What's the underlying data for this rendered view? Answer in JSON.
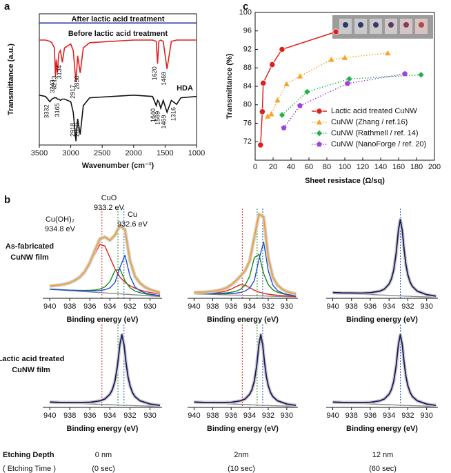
{
  "chart_data": [
    {
      "type": "line",
      "panel_label": "a",
      "x_label": "Wavenumber (cm⁻¹)",
      "y_label": "Transmittance (a.u.)",
      "x": [
        3500,
        3400,
        3332,
        3300,
        3260,
        3243,
        3230,
        3213,
        3190,
        3165,
        3134,
        3100,
        3000,
        2960,
        2918,
        2890,
        2850,
        2800,
        2700,
        2000,
        1700,
        1640,
        1620,
        1600,
        1569,
        1530,
        1469,
        1400,
        1316,
        1250,
        1000
      ],
      "xlim": [
        3500,
        1000
      ],
      "xticks": [
        3500,
        3000,
        2500,
        2000,
        1500,
        1000
      ],
      "ylim": [
        0,
        100
      ],
      "series": [
        {
          "name": "After lactic acid treatment",
          "color": "#1c2f9e",
          "values": [
            93,
            93,
            93,
            93,
            93,
            93,
            93,
            93,
            93,
            93,
            93,
            93,
            93,
            93,
            93,
            93,
            93,
            93,
            93,
            93,
            93,
            93,
            93,
            93,
            93,
            93,
            93,
            93,
            93,
            93,
            93
          ],
          "peak_labels": []
        },
        {
          "name": "Before lactic acid treatment",
          "color": "#e0201e",
          "values": [
            80,
            80,
            79,
            78,
            74,
            52,
            65,
            55,
            70,
            72,
            63,
            74,
            77,
            72,
            48,
            68,
            55,
            74,
            78,
            80,
            80,
            79,
            62,
            79,
            80,
            79,
            58,
            79,
            80,
            80,
            80
          ],
          "peak_labels": [
            3243,
            3213,
            3134,
            2917,
            2850,
            1620,
            1469
          ]
        },
        {
          "name": "HDA",
          "color": "#111111",
          "values": [
            38,
            37,
            33,
            35,
            36,
            36,
            36,
            35,
            35,
            34,
            35,
            35,
            33,
            25,
            3,
            20,
            8,
            30,
            36,
            38,
            37,
            30,
            34,
            33,
            28,
            34,
            25,
            34,
            31,
            36,
            37
          ],
          "peak_labels": [
            3332,
            3165,
            2918,
            2850,
            1640,
            1569,
            1469,
            1316
          ]
        }
      ]
    },
    {
      "type": "scatter",
      "panel_label": "c",
      "x_label": "Sheet resistace (Ω/sq)",
      "y_label": "Transmittance (%)",
      "xlim": [
        0,
        200
      ],
      "xticks": [
        0,
        20,
        40,
        60,
        80,
        100,
        120,
        140,
        160,
        180,
        200
      ],
      "ylim": [
        68,
        100
      ],
      "yticks": [
        72,
        76,
        80,
        84,
        88,
        92,
        96,
        100
      ],
      "legend": "lower right",
      "series": [
        {
          "name": "Lactic acid treated CuNW",
          "color": "#e0201e",
          "marker": "circle",
          "linestyle": "solid",
          "x": [
            6,
            8,
            9,
            19,
            30,
            90
          ],
          "values": [
            71.3,
            78.5,
            84.7,
            88.7,
            92,
            95.8
          ]
        },
        {
          "name": "CuNW (Zhang / ref.16)",
          "color": "#f5a623",
          "marker": "triangle",
          "linestyle": "dotted",
          "x": [
            14,
            18,
            25,
            35,
            50,
            85,
            100,
            148
          ],
          "values": [
            77.5,
            78,
            81,
            84.5,
            86.2,
            89.8,
            90.2,
            91.2
          ]
        },
        {
          "name": "CuNW (Rathmell / ref. 14)",
          "color": "#22b14c",
          "marker": "diamond",
          "linestyle": "dotted",
          "x": [
            30,
            58,
            105,
            185
          ],
          "values": [
            77.8,
            82.8,
            85.6,
            86.5
          ]
        },
        {
          "name": "CuNW (NanoForge / ref. 20)",
          "color": "#a040e0",
          "marker": "pentagon",
          "linestyle": "dotted",
          "x": [
            32,
            50,
            103,
            167
          ],
          "values": [
            75,
            79.8,
            84.6,
            86.7
          ]
        }
      ]
    },
    {
      "type": "line",
      "x_label": "Binding energy (eV)",
      "xlim": [
        940.7,
        928.8
      ],
      "xticks": [
        940,
        938,
        936,
        934,
        932,
        930
      ],
      "ylim": [
        0,
        100
      ],
      "x": [
        940,
        939.5,
        939,
        938.5,
        938,
        937.5,
        937,
        936.5,
        936,
        935.5,
        935,
        934.5,
        934,
        933.5,
        933,
        932.5,
        932,
        931.5,
        931,
        930.5,
        930,
        929.5,
        929
      ],
      "vlines": [
        {
          "x": 934.8,
          "color": "#e0201e"
        },
        {
          "x": 933.2,
          "color": "#1a8a1a"
        },
        {
          "x": 932.6,
          "color": "#1f4fd0"
        }
      ],
      "annotations": [
        [
          "CuO",
          "933.2 eV"
        ],
        [
          "Cu(OH)₂",
          "934.8 eV"
        ],
        [
          "Cu",
          "932.6 eV"
        ]
      ],
      "series": [
        {
          "color": "#888888",
          "values": [
            10,
            9.6,
            9.3,
            8.9,
            8.5,
            8.2,
            7.8,
            7.5,
            7.1,
            6.7,
            6.4,
            6.0,
            5.6,
            5.3,
            4.9,
            4.5,
            4.2,
            3.8,
            3.5,
            3.1,
            2.7,
            2.4,
            2.0
          ]
        },
        {
          "color": "#e0201e",
          "values": [
            13.2,
            13.5,
            14.1,
            14.9,
            16.3,
            18.6,
            22.0,
            27.8,
            36.8,
            49.3,
            60.1,
            58.2,
            45.5,
            32.8,
            23.8,
            17.8,
            14.0,
            11.2,
            9.3,
            7.7,
            6.5,
            5.5,
            4.6
          ]
        },
        {
          "color": "#1a8a1a",
          "values": [
            10.3,
            10.0,
            9.7,
            9.4,
            9.1,
            9.0,
            8.8,
            8.8,
            8.9,
            9.2,
            10.3,
            12.7,
            18.6,
            30.7,
            32.7,
            19.5,
            11.8,
            8.1,
            6.3,
            5.0,
            4.1,
            3.4,
            2.8
          ]
        },
        {
          "color": "#1f4fd0",
          "values": [
            10.2,
            9.9,
            9.6,
            9.3,
            9.0,
            8.8,
            8.5,
            8.4,
            8.3,
            8.3,
            8.6,
            9.5,
            11.6,
            17.5,
            34.3,
            48.1,
            24.7,
            12.8,
            8.3,
            6.0,
            4.6,
            3.8,
            3.0
          ]
        },
        {
          "color": "#f0a030",
          "values": [
            13.7,
            14.2,
            14.8,
            15.8,
            17.4,
            20.0,
            23.7,
            30.0,
            39.8,
            53.4,
            66.2,
            68.4,
            64.5,
            70.4,
            81.0,
            76.4,
            42.1,
            24.5,
            16.9,
            12.5,
            9.8,
            7.9,
            6.4
          ]
        }
      ]
    },
    {
      "type": "line",
      "x_label": "Binding energy (eV)",
      "xlim": [
        940.7,
        928.8
      ],
      "xticks": [
        940,
        938,
        936,
        934,
        932,
        930
      ],
      "ylim": [
        0,
        100
      ],
      "x": [
        940,
        939.5,
        939,
        938.5,
        938,
        937.5,
        937,
        936.5,
        936,
        935.5,
        935,
        934.5,
        934,
        933.5,
        933,
        932.5,
        932,
        931.5,
        931,
        930.5,
        930,
        929.5,
        929
      ],
      "vlines": [
        {
          "x": 934.8,
          "color": "#e0201e"
        },
        {
          "x": 933.2,
          "color": "#1a8a1a"
        },
        {
          "x": 932.6,
          "color": "#1f4fd0"
        }
      ],
      "series": [
        {
          "color": "#888888",
          "values": [
            5.0,
            4.8,
            4.7,
            4.5,
            4.4,
            4.2,
            4.0,
            3.9,
            3.7,
            3.6,
            3.4,
            3.3,
            3.1,
            2.9,
            2.8,
            2.6,
            2.5,
            2.3,
            2.1,
            2.0,
            1.8,
            1.7,
            1.5
          ]
        },
        {
          "color": "#e0201e",
          "values": [
            5.7,
            5.7,
            5.7,
            5.8,
            6.1,
            6.5,
            7.1,
            8.3,
            10.2,
            12.9,
            15.1,
            14.7,
            11.8,
            8.9,
            6.9,
            5.5,
            4.6,
            3.9,
            3.4,
            3.0,
            2.6,
            2.4,
            2.1
          ]
        },
        {
          "color": "#1a8a1a",
          "values": [
            5.5,
            5.5,
            5.4,
            5.3,
            5.4,
            5.5,
            5.7,
            6.1,
            6.7,
            7.8,
            9.9,
            14.5,
            24.8,
            45.2,
            49.1,
            27.6,
            15.2,
            9.5,
            6.8,
            5.2,
            4.1,
            3.4,
            2.8
          ]
        },
        {
          "color": "#1f4fd0",
          "values": [
            5.3,
            5.2,
            5.1,
            5.1,
            5.1,
            5.0,
            5.0,
            5.1,
            5.4,
            5.8,
            6.4,
            8.1,
            11.4,
            19.7,
            43.3,
            62.7,
            30.7,
            14.7,
            8.7,
            6.0,
            4.4,
            3.6,
            2.9
          ]
        },
        {
          "color": "#f0a030",
          "values": [
            6.5,
            6.8,
            6.8,
            7.2,
            7.8,
            8.6,
            9.8,
            11.7,
            14.9,
            19.3,
            24.6,
            30.7,
            41.8,
            68.0,
            93.7,
            90.6,
            45.5,
            23.5,
            14.7,
            10.2,
            7.5,
            6.0,
            4.8
          ]
        }
      ]
    },
    {
      "type": "line",
      "x_label": "Binding energy (eV)",
      "xlim": [
        940.7,
        928.8
      ],
      "xticks": [
        940,
        938,
        936,
        934,
        932,
        930
      ],
      "ylim": [
        0,
        100
      ],
      "x": [
        940,
        939,
        938,
        937,
        936,
        935,
        934.5,
        934,
        933.75,
        933.5,
        933.25,
        933,
        932.8,
        932.6,
        932.4,
        932.2,
        932,
        931.75,
        931.5,
        931,
        930,
        929
      ],
      "vlines": [
        {
          "x": 932.8,
          "color": "#1f4fd0"
        }
      ],
      "series": [
        {
          "color": "#888888",
          "values": [
            6,
            5.5,
            5.1,
            4.6,
            4.2,
            3.7,
            3.5,
            3.3,
            3.2,
            3.0,
            2.9,
            2.8,
            2.7,
            2.6,
            2.5,
            2.4,
            2.4,
            2.2,
            2.1,
            1.9,
            1.5,
            1
          ]
        },
        {
          "color": "#1a1a5e",
          "values": [
            6.4,
            6.0,
            5.9,
            5.8,
            6.2,
            7.9,
            10.2,
            15.9,
            21.6,
            31.7,
            49.9,
            76.1,
            87.7,
            75.9,
            54.3,
            37.2,
            26.3,
            17.9,
            13.1,
            8.0,
            4.1,
            2.4
          ]
        }
      ]
    },
    {
      "type": "line",
      "x_label": "Binding energy (eV)",
      "xlim": [
        940.7,
        928.8
      ],
      "xticks": [
        940,
        938,
        936,
        934,
        932,
        930
      ],
      "ylim": [
        0,
        100
      ],
      "x": [
        940,
        939,
        938,
        937,
        936,
        935,
        934.5,
        934,
        933.75,
        933.5,
        933.25,
        933,
        932.8,
        932.6,
        932.4,
        932.2,
        932,
        931.75,
        931.5,
        931,
        930,
        929
      ],
      "vlines": [
        {
          "x": 934.8,
          "color": "#e0201e"
        },
        {
          "x": 933.2,
          "color": "#1a8a1a"
        },
        {
          "x": 932.6,
          "color": "#1f4fd0"
        }
      ],
      "series": [
        {
          "color": "#888888",
          "values": [
            6,
            5.5,
            5.1,
            4.6,
            4.2,
            3.7,
            3.5,
            3.3,
            3.2,
            3.0,
            2.9,
            2.8,
            2.7,
            2.6,
            2.5,
            2.4,
            2.4,
            2.2,
            2.1,
            1.9,
            1.5,
            1
          ]
        },
        {
          "color": "#1a1a5e",
          "values": [
            6.4,
            6.0,
            5.9,
            5.8,
            6.2,
            7.9,
            10.2,
            15.9,
            21.6,
            31.7,
            49.9,
            76.1,
            87.7,
            75.9,
            54.3,
            37.2,
            26.3,
            17.9,
            13.1,
            8.0,
            4.1,
            2.4
          ]
        }
      ]
    },
    {
      "type": "line",
      "x_label": "Binding energy (eV)",
      "xlim": [
        940.7,
        928.8
      ],
      "xticks": [
        940,
        938,
        936,
        934,
        932,
        930
      ],
      "ylim": [
        0,
        100
      ],
      "x": [
        940,
        939,
        938,
        937,
        936,
        935,
        934.5,
        934,
        933.75,
        933.5,
        933.25,
        933,
        932.8,
        932.6,
        932.4,
        932.2,
        932,
        931.75,
        931.5,
        931,
        930,
        929
      ],
      "vlines": [
        {
          "x": 934.8,
          "color": "#e0201e"
        },
        {
          "x": 933.2,
          "color": "#1a8a1a"
        },
        {
          "x": 932.6,
          "color": "#1f4fd0"
        }
      ],
      "series": [
        {
          "color": "#888888",
          "values": [
            6,
            5.5,
            5.1,
            4.6,
            4.2,
            3.7,
            3.5,
            3.3,
            3.2,
            3.0,
            2.9,
            2.8,
            2.7,
            2.6,
            2.5,
            2.4,
            2.4,
            2.2,
            2.1,
            1.9,
            1.5,
            1
          ]
        },
        {
          "color": "#1a1a5e",
          "values": [
            6.4,
            6.0,
            5.9,
            5.8,
            6.2,
            7.9,
            10.2,
            15.9,
            21.6,
            31.7,
            49.9,
            76.1,
            87.7,
            75.9,
            54.3,
            37.2,
            26.3,
            17.9,
            13.1,
            8.0,
            4.1,
            2.4
          ]
        }
      ]
    },
    {
      "type": "line",
      "x_label": "Binding energy (eV)",
      "xlim": [
        940.7,
        928.8
      ],
      "xticks": [
        940,
        938,
        936,
        934,
        932,
        930
      ],
      "ylim": [
        0,
        100
      ],
      "x": [
        940,
        939,
        938,
        937,
        936,
        935,
        934.5,
        934,
        933.75,
        933.5,
        933.25,
        933,
        932.8,
        932.6,
        932.4,
        932.2,
        932,
        931.75,
        931.5,
        931,
        930,
        929
      ],
      "vlines": [
        {
          "x": 932.8,
          "color": "#1f4fd0"
        }
      ],
      "series": [
        {
          "color": "#888888",
          "values": [
            6,
            5.5,
            5.1,
            4.6,
            4.2,
            3.7,
            3.5,
            3.3,
            3.2,
            3.0,
            2.9,
            2.8,
            2.7,
            2.6,
            2.5,
            2.4,
            2.4,
            2.2,
            2.1,
            1.9,
            1.5,
            1
          ]
        },
        {
          "color": "#1a1a5e",
          "values": [
            6.4,
            6.0,
            5.9,
            5.8,
            6.2,
            7.9,
            10.2,
            15.9,
            21.6,
            31.7,
            49.9,
            76.1,
            87.7,
            75.9,
            54.3,
            37.2,
            26.3,
            17.9,
            13.1,
            8.0,
            4.1,
            2.4
          ]
        }
      ]
    }
  ],
  "figure": {
    "panel_b_label": "b",
    "row_labels": [
      [
        "As-fabricated",
        "CuNW film"
      ],
      [
        "Lactic acid treated",
        "CuNW film"
      ]
    ],
    "etching": {
      "depth_label": "Etching Depth",
      "time_label": "( Etching Time )",
      "depths": [
        "0 nm",
        "2nm",
        "12 nm"
      ],
      "times": [
        "(0 sec)",
        "(10 sec)",
        "(60 sec)"
      ]
    }
  }
}
